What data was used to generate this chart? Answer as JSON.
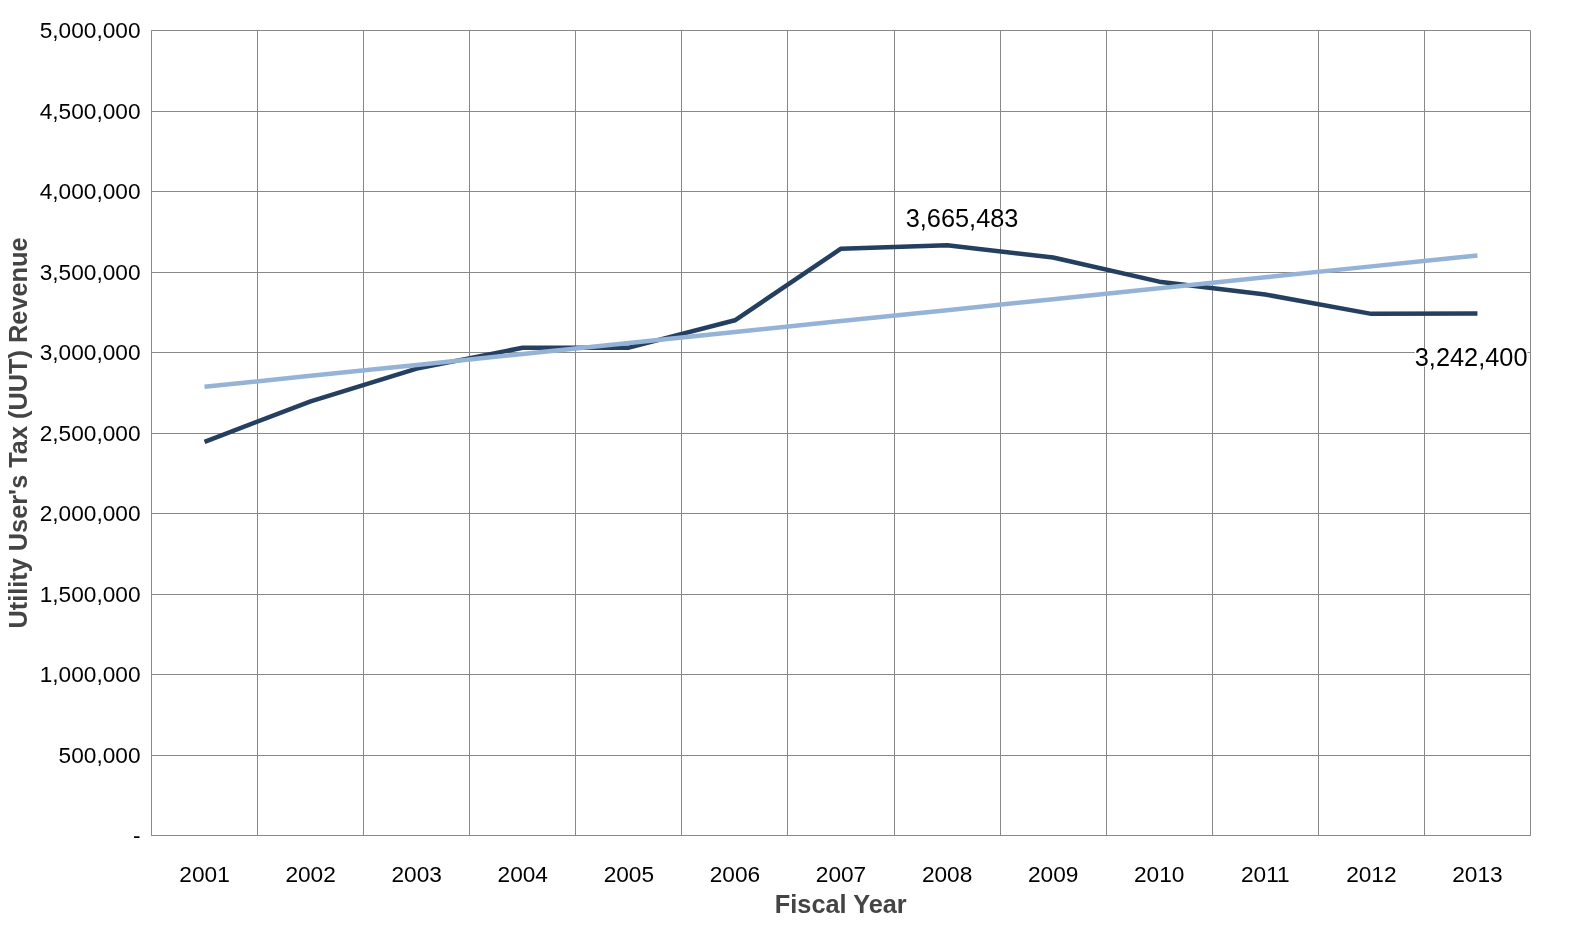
{
  "chart_data": {
    "type": "line",
    "xlabel": "Fiscal Year",
    "ylabel": "Utility User's Tax (UUT) Revenue",
    "categories": [
      "2001",
      "2002",
      "2003",
      "2004",
      "2005",
      "2006",
      "2007",
      "2008",
      "2009",
      "2010",
      "2011",
      "2012",
      "2013"
    ],
    "series": [
      {
        "color": "#243f60",
        "values": [
          2445000,
          2697000,
          2900000,
          3030000,
          3030000,
          3200000,
          3645000,
          3665483,
          3590000,
          3440000,
          3360000,
          3240000,
          3242400
        ],
        "value_labels": [
          null,
          null,
          null,
          null,
          null,
          null,
          null,
          "3,665,483",
          null,
          null,
          null,
          null,
          "3,242,400"
        ]
      },
      {
        "color": "#95b3d7",
        "values": [
          2787000,
          2855000,
          2923000,
          2991000,
          3059000,
          3127000,
          3195000,
          3263000,
          3331000,
          3399000,
          3467000,
          3535000,
          3603000
        ]
      }
    ],
    "ylim": [
      0,
      5000000
    ],
    "yticks": [
      {
        "value": 0,
        "label": "-"
      },
      {
        "value": 500000,
        "label": "500,000"
      },
      {
        "value": 1000000,
        "label": "1,000,000"
      },
      {
        "value": 1500000,
        "label": "1,500,000"
      },
      {
        "value": 2000000,
        "label": "2,000,000"
      },
      {
        "value": 2500000,
        "label": "2,500,000"
      },
      {
        "value": 3000000,
        "label": "3,000,000"
      },
      {
        "value": 3500000,
        "label": "3,500,000"
      },
      {
        "value": 4000000,
        "label": "4,000,000"
      },
      {
        "value": 4500000,
        "label": "4,500,000"
      },
      {
        "value": 5000000,
        "label": "5,000,000"
      }
    ],
    "grid": true,
    "marker": "none",
    "line_style": "solid"
  }
}
